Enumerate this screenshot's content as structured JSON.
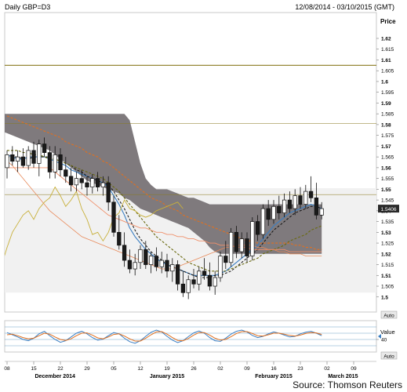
{
  "header": {
    "title": "Daily GBP=D3",
    "date_range": "12/08/2014 - 03/10/2015 (GMT)"
  },
  "main_panel": {
    "price_label": "Price",
    "auto_label": "Auto"
  },
  "sub_panel": {
    "value_label": "Value",
    "auto_label": "Auto"
  },
  "footer": {
    "source": "Source: Thomson Reuters"
  },
  "colors": {
    "cloud": "#7f7a7d",
    "up_candle": "#ffffff",
    "down_candle": "#1a1a1a",
    "blue_line": "#3a7ec2",
    "dark_line": "#111111",
    "orange_dashed": "#e07020",
    "olive_dashed": "#6a6a10",
    "salmon": "#f0906a",
    "yellow_line": "#c8b03a",
    "h_line": "#8a7a20"
  },
  "chart_data": {
    "type": "candlestick",
    "title": "Daily GBP=D3",
    "ylabel": "Price",
    "ylim": [
      1.493,
      1.632
    ],
    "y_ticks": [
      "1.62",
      "1.615",
      "1.61",
      "1.605",
      "1.6",
      "1.595",
      "1.59",
      "1.585",
      "1.58",
      "1.575",
      "1.57",
      "1.565",
      "1.56",
      "1.555",
      "1.55",
      "1.545",
      "1.54",
      "1.535",
      "1.53",
      "1.525",
      "1.52",
      "1.515",
      "1.51",
      "1.505",
      "1.5"
    ],
    "y_tick_values": [
      1.62,
      1.615,
      1.61,
      1.605,
      1.6,
      1.595,
      1.59,
      1.585,
      1.58,
      1.575,
      1.57,
      1.565,
      1.56,
      1.555,
      1.55,
      1.545,
      1.54,
      1.535,
      1.53,
      1.525,
      1.52,
      1.515,
      1.51,
      1.505,
      1.5
    ],
    "x_tick_labels": [
      "08",
      "15",
      "22",
      "29",
      "05",
      "12",
      "19",
      "26",
      "02",
      "09",
      "16",
      "23",
      "02",
      "09"
    ],
    "x_tick_index": [
      0,
      5,
      10,
      15,
      20,
      25,
      30,
      35,
      40,
      45,
      50,
      55,
      60,
      65
    ],
    "month_labels": [
      {
        "label": "December 2014",
        "index": 9
      },
      {
        "label": "January 2015",
        "index": 30
      },
      {
        "label": "February 2015",
        "index": 50
      },
      {
        "label": "March 2015",
        "index": 63
      }
    ],
    "last_close": "1.5406",
    "horizontal_levels": [
      1.6075,
      1.5805,
      1.5475
    ],
    "candles": [
      [
        1.56,
        1.568,
        1.555,
        1.566
      ],
      [
        1.566,
        1.57,
        1.561,
        1.563
      ],
      [
        1.563,
        1.568,
        1.558,
        1.565
      ],
      [
        1.565,
        1.569,
        1.56,
        1.561
      ],
      [
        1.561,
        1.57,
        1.559,
        1.568
      ],
      [
        1.568,
        1.572,
        1.56,
        1.562
      ],
      [
        1.562,
        1.573,
        1.556,
        1.571
      ],
      [
        1.571,
        1.574,
        1.565,
        1.567
      ],
      [
        1.567,
        1.57,
        1.555,
        1.558
      ],
      [
        1.558,
        1.57,
        1.555,
        1.566
      ],
      [
        1.566,
        1.569,
        1.556,
        1.559
      ],
      [
        1.559,
        1.565,
        1.553,
        1.556
      ],
      [
        1.556,
        1.56,
        1.549,
        1.552
      ],
      [
        1.552,
        1.558,
        1.549,
        1.555
      ],
      [
        1.555,
        1.559,
        1.55,
        1.553
      ],
      [
        1.553,
        1.556,
        1.547,
        1.551
      ],
      [
        1.551,
        1.557,
        1.548,
        1.555
      ],
      [
        1.555,
        1.558,
        1.549,
        1.551
      ],
      [
        1.551,
        1.556,
        1.547,
        1.553
      ],
      [
        1.553,
        1.556,
        1.54,
        1.544
      ],
      [
        1.544,
        1.547,
        1.528,
        1.53
      ],
      [
        1.53,
        1.538,
        1.522,
        1.524
      ],
      [
        1.524,
        1.53,
        1.514,
        1.517
      ],
      [
        1.517,
        1.522,
        1.511,
        1.513
      ],
      [
        1.513,
        1.52,
        1.51,
        1.516
      ],
      [
        1.516,
        1.524,
        1.513,
        1.522
      ],
      [
        1.522,
        1.526,
        1.513,
        1.515
      ],
      [
        1.515,
        1.521,
        1.511,
        1.519
      ],
      [
        1.519,
        1.523,
        1.512,
        1.514
      ],
      [
        1.514,
        1.521,
        1.511,
        1.517
      ],
      [
        1.517,
        1.52,
        1.509,
        1.512
      ],
      [
        1.512,
        1.518,
        1.507,
        1.515
      ],
      [
        1.515,
        1.517,
        1.503,
        1.506
      ],
      [
        1.506,
        1.512,
        1.5,
        1.502
      ],
      [
        1.502,
        1.51,
        1.499,
        1.508
      ],
      [
        1.508,
        1.513,
        1.504,
        1.506
      ],
      [
        1.506,
        1.514,
        1.503,
        1.512
      ],
      [
        1.512,
        1.518,
        1.508,
        1.51
      ],
      [
        1.51,
        1.516,
        1.503,
        1.505
      ],
      [
        1.505,
        1.512,
        1.501,
        1.509
      ],
      [
        1.509,
        1.521,
        1.507,
        1.519
      ],
      [
        1.519,
        1.526,
        1.513,
        1.516
      ],
      [
        1.516,
        1.532,
        1.514,
        1.53
      ],
      [
        1.53,
        1.533,
        1.518,
        1.521
      ],
      [
        1.521,
        1.53,
        1.518,
        1.527
      ],
      [
        1.527,
        1.53,
        1.516,
        1.519
      ],
      [
        1.519,
        1.537,
        1.517,
        1.535
      ],
      [
        1.535,
        1.538,
        1.526,
        1.529
      ],
      [
        1.529,
        1.543,
        1.527,
        1.541
      ],
      [
        1.541,
        1.545,
        1.533,
        1.536
      ],
      [
        1.536,
        1.545,
        1.534,
        1.542
      ],
      [
        1.542,
        1.547,
        1.536,
        1.539
      ],
      [
        1.539,
        1.548,
        1.537,
        1.545
      ],
      [
        1.545,
        1.549,
        1.539,
        1.541
      ],
      [
        1.541,
        1.55,
        1.538,
        1.547
      ],
      [
        1.547,
        1.551,
        1.541,
        1.543
      ],
      [
        1.543,
        1.552,
        1.541,
        1.549
      ],
      [
        1.549,
        1.556,
        1.544,
        1.546
      ],
      [
        1.546,
        1.553,
        1.536,
        1.538
      ],
      [
        1.538,
        1.544,
        1.536,
        1.541
      ]
    ],
    "series": [
      {
        "values": [
          1.566,
          1.565,
          1.564,
          1.564,
          1.565,
          1.565,
          1.565,
          1.565,
          1.564,
          1.563,
          1.562,
          1.561,
          1.559,
          1.558,
          1.557,
          1.556,
          1.555,
          1.554,
          1.553,
          1.551,
          1.547,
          1.543,
          1.538,
          1.532,
          1.528,
          1.525,
          1.522,
          1.52,
          1.518,
          1.516,
          1.515,
          1.514,
          1.513,
          1.512,
          1.511,
          1.51,
          1.51,
          1.51,
          1.51,
          1.51,
          1.511,
          1.512,
          1.514,
          1.516,
          1.518,
          1.52,
          1.522,
          1.524,
          1.527,
          1.53,
          1.533,
          1.535,
          1.537,
          1.539,
          1.54,
          1.541,
          1.542,
          1.543,
          1.542,
          1.541
        ]
      },
      {
        "values": [
          1.565,
          1.565,
          1.565,
          1.564,
          1.564,
          1.565,
          1.565,
          1.565,
          1.565,
          1.564,
          1.563,
          1.562,
          1.561,
          1.559,
          1.558,
          1.556,
          1.555,
          1.554,
          1.553,
          1.552,
          1.549,
          1.545,
          1.541,
          1.536,
          1.531,
          1.527,
          1.524,
          1.521,
          1.519,
          1.517,
          1.515,
          1.514,
          1.513,
          1.512,
          1.511,
          1.51,
          1.509,
          1.509,
          1.509,
          1.51,
          1.51,
          1.511,
          1.512,
          1.514,
          1.516,
          1.518,
          1.52,
          1.522,
          1.525,
          1.528,
          1.531,
          1.533,
          1.535,
          1.537,
          1.539,
          1.54,
          1.541,
          1.542,
          1.542,
          1.541
        ]
      },
      {
        "values": [
          1.584,
          1.583,
          1.582,
          1.581,
          1.58,
          1.579,
          1.578,
          1.577,
          1.576,
          1.575,
          1.574,
          1.572,
          1.571,
          1.57,
          1.569,
          1.567,
          1.566,
          1.565,
          1.563,
          1.562,
          1.56,
          1.558,
          1.556,
          1.554,
          1.552,
          1.55,
          1.548,
          1.546,
          1.545,
          1.544,
          1.542,
          1.541,
          1.54,
          1.538,
          1.537,
          1.536,
          1.535,
          1.534,
          1.533,
          1.532,
          1.531,
          1.53,
          1.529,
          1.528,
          1.527,
          1.526,
          1.526,
          1.525,
          1.525,
          1.525,
          1.525,
          1.525,
          1.525,
          1.525,
          1.524,
          1.524,
          1.523,
          1.523,
          1.522,
          1.522
        ]
      },
      {
        "values": [
          1.568,
          1.568,
          1.568,
          1.567,
          1.567,
          1.566,
          1.566,
          1.565,
          1.564,
          1.564,
          1.563,
          1.562,
          1.561,
          1.56,
          1.559,
          1.558,
          1.557,
          1.556,
          1.555,
          1.553,
          1.551,
          1.549,
          1.546,
          1.543,
          1.54,
          1.537,
          1.534,
          1.531,
          1.528,
          1.526,
          1.524,
          1.522,
          1.52,
          1.518,
          1.516,
          1.515,
          1.514,
          1.513,
          1.512,
          1.512,
          1.512,
          1.512,
          1.513,
          1.514,
          1.515,
          1.516,
          1.517,
          1.518,
          1.52,
          1.521,
          1.522,
          1.523,
          1.524,
          1.526,
          1.527,
          1.528,
          1.529,
          1.531,
          1.532,
          1.533
        ]
      },
      {
        "values": [
          1.56,
          1.56,
          1.56,
          1.56,
          1.56,
          1.56,
          1.56,
          1.56,
          1.56,
          1.558,
          1.556,
          1.554,
          1.552,
          1.55,
          1.548,
          1.546,
          1.544,
          1.542,
          1.54,
          1.538,
          1.537,
          1.536,
          1.535,
          1.534,
          1.533,
          1.532,
          1.532,
          1.531,
          1.53,
          1.53,
          1.529,
          1.529,
          1.528,
          1.528,
          1.527,
          1.527,
          1.526,
          1.526,
          1.525,
          1.525,
          1.524,
          1.524,
          1.524,
          1.523,
          1.523,
          1.523,
          1.522,
          1.522,
          1.522,
          1.522,
          1.522,
          1.522,
          1.522,
          1.521,
          1.521,
          1.521,
          1.521,
          1.521,
          1.521,
          1.521
        ]
      },
      {
        "values": [
          1.563,
          1.561,
          1.558,
          1.555,
          1.552,
          1.549,
          1.546,
          1.543,
          1.54,
          1.538,
          1.536,
          1.534,
          1.532,
          1.53,
          1.528,
          1.527,
          1.526,
          1.525,
          1.524,
          1.523,
          1.522,
          1.521,
          1.52,
          1.519,
          1.518,
          1.517,
          1.516,
          1.515,
          1.514,
          1.513,
          1.513,
          1.513,
          1.514,
          1.515,
          1.516,
          1.517,
          1.518,
          1.519,
          1.52,
          1.521,
          1.522,
          1.523,
          1.523,
          1.524,
          1.524,
          1.524,
          1.524,
          1.523,
          1.523,
          1.522,
          1.522,
          1.521,
          1.521,
          1.52,
          1.52,
          1.52,
          1.519,
          1.519,
          1.519,
          1.519
        ]
      },
      {
        "offset": -26,
        "values": [
          1.524,
          1.521,
          1.519,
          1.515,
          1.51,
          1.507,
          1.511,
          1.515,
          1.51,
          1.506,
          1.509,
          1.513,
          1.518,
          1.521,
          1.524,
          1.528,
          1.532,
          1.535,
          1.531,
          1.527,
          1.52,
          1.516,
          1.512,
          1.508,
          1.507,
          1.515,
          1.523,
          1.53,
          1.534,
          1.538,
          1.54,
          1.536,
          1.541,
          1.544,
          1.546,
          1.551,
          1.547,
          1.542,
          1.545,
          1.549,
          1.541,
          1.536,
          1.529,
          1.53,
          1.526,
          1.53,
          1.537,
          1.539,
          1.545,
          1.541,
          1.54,
          1.538,
          1.537,
          1.538,
          1.54,
          1.541,
          1.542,
          1.543,
          1.544,
          1.541
        ]
      }
    ],
    "cloud": {
      "upper": [
        1.632,
        1.632,
        1.632,
        1.632,
        1.631,
        1.63,
        1.628,
        1.626,
        1.624,
        1.622,
        1.62,
        1.617,
        1.613,
        1.608,
        1.603,
        1.598,
        1.594,
        1.59,
        1.588,
        1.587,
        1.587,
        1.586,
        1.586,
        1.585,
        1.585,
        1.585,
        1.585,
        1.585,
        1.585,
        1.585,
        1.585,
        1.585,
        1.585,
        1.585,
        1.585,
        1.585,
        1.585,
        1.585,
        1.585,
        1.585,
        1.585,
        1.585,
        1.585,
        1.585,
        1.585,
        1.585,
        1.585,
        1.585,
        1.585,
        1.582,
        1.572,
        1.562,
        1.555,
        1.552,
        1.55,
        1.55,
        1.55,
        1.549,
        1.548,
        1.547,
        1.546,
        1.546,
        1.545,
        1.544,
        1.543,
        1.543,
        1.543,
        1.543,
        1.543,
        1.543,
        1.543,
        1.543,
        1.543,
        1.543,
        1.543,
        1.543,
        1.543,
        1.543,
        1.543,
        1.543,
        1.543,
        1.543,
        1.543,
        1.543,
        1.543,
        1.543
      ],
      "lower": [
        1.615,
        1.612,
        1.608,
        1.604,
        1.6,
        1.596,
        1.593,
        1.59,
        1.589,
        1.589,
        1.589,
        1.589,
        1.588,
        1.587,
        1.586,
        1.585,
        1.584,
        1.584,
        1.584,
        1.583,
        1.582,
        1.581,
        1.58,
        1.579,
        1.578,
        1.577,
        1.576,
        1.575,
        1.574,
        1.573,
        1.572,
        1.571,
        1.57,
        1.569,
        1.568,
        1.566,
        1.564,
        1.562,
        1.56,
        1.558,
        1.556,
        1.554,
        1.553,
        1.552,
        1.551,
        1.55,
        1.549,
        1.548,
        1.546,
        1.545,
        1.543,
        1.541,
        1.54,
        1.539,
        1.538,
        1.537,
        1.536,
        1.535,
        1.534,
        1.533,
        1.532,
        1.53,
        1.528,
        1.526,
        1.523,
        1.521,
        1.52,
        1.52,
        1.52,
        1.52,
        1.52,
        1.52,
        1.52,
        1.52,
        1.52,
        1.52,
        1.52,
        1.52,
        1.52,
        1.52,
        1.52,
        1.52,
        1.52,
        1.52,
        1.52,
        1.52
      ]
    },
    "cloud_shift": -26,
    "oscillator": {
      "label": "Value",
      "y_ticks": [
        "40"
      ],
      "levels": [
        80,
        60,
        40,
        20
      ],
      "blue": [
        62,
        55,
        48,
        40,
        36,
        44,
        58,
        66,
        52,
        40,
        31,
        36,
        48,
        60,
        66,
        58,
        46,
        38,
        41,
        52,
        62,
        58,
        44,
        33,
        28,
        36,
        50,
        63,
        70,
        64,
        50,
        38,
        30,
        36,
        49,
        61,
        67,
        60,
        46,
        36,
        34,
        44,
        57,
        66,
        70,
        64,
        53,
        46,
        50,
        58,
        64,
        60,
        54,
        48,
        50,
        58,
        63,
        66,
        60,
        52
      ],
      "orange": [
        55,
        57,
        52,
        46,
        42,
        44,
        52,
        60,
        57,
        48,
        40,
        37,
        42,
        52,
        60,
        61,
        54,
        45,
        42,
        48,
        56,
        58,
        51,
        42,
        35,
        35,
        44,
        55,
        64,
        65,
        57,
        46,
        37,
        36,
        43,
        54,
        62,
        62,
        54,
        44,
        38,
        40,
        49,
        59,
        65,
        65,
        59,
        52,
        51,
        55,
        60,
        60,
        57,
        53,
        51,
        54,
        59,
        62,
        61,
        56
      ]
    }
  }
}
